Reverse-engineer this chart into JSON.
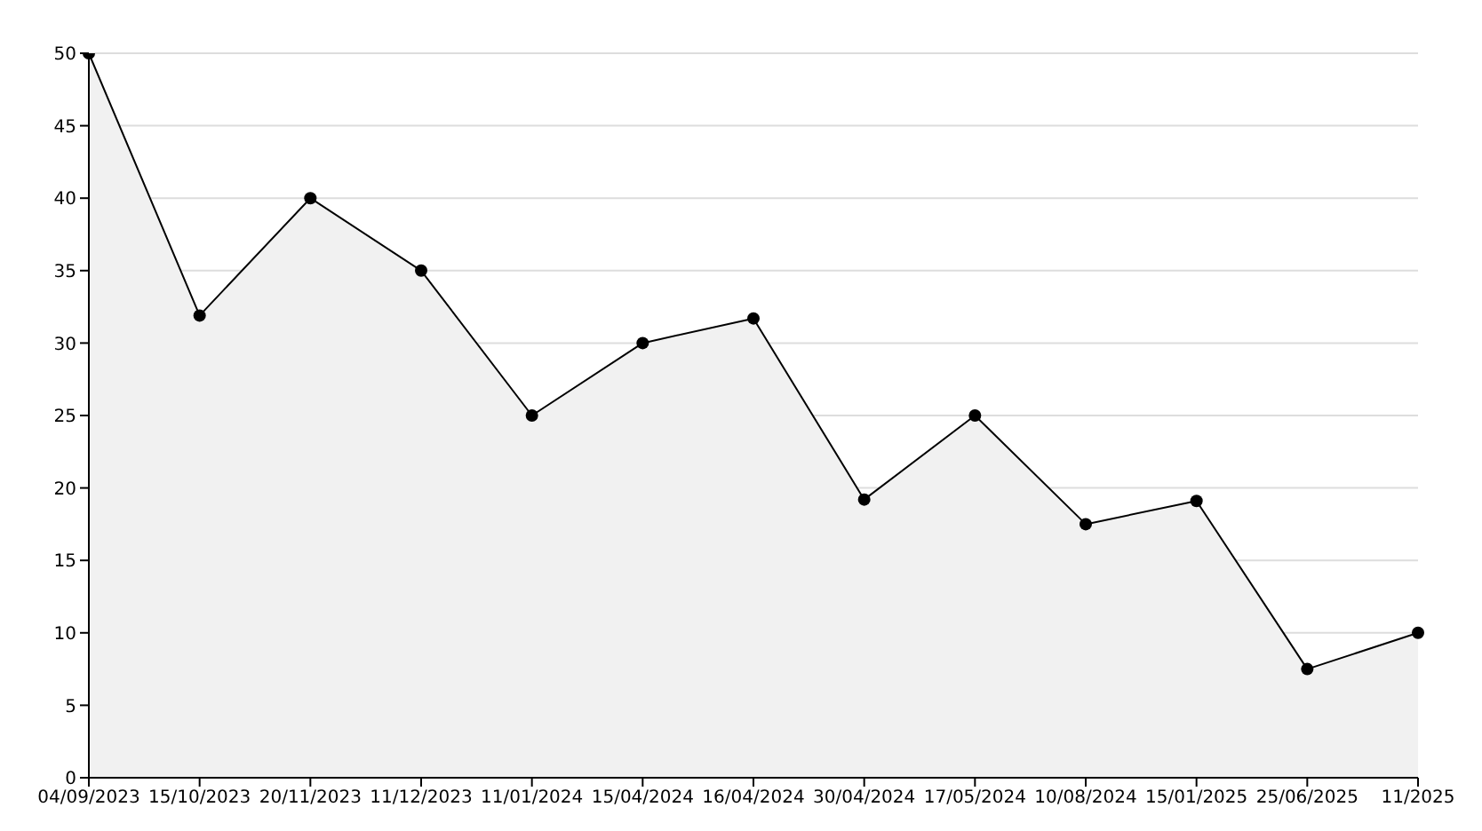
{
  "chart_data": {
    "type": "area",
    "categories": [
      "04/09/2023",
      "15/10/2023",
      "20/11/2023",
      "11/12/2023",
      "11/01/2024",
      "15/04/2024",
      "16/04/2024",
      "30/04/2024",
      "17/05/2024",
      "10/08/2024",
      "15/01/2025",
      "25/06/2025",
      "11/2025"
    ],
    "series": [
      {
        "color": "#000000",
        "values": [
          50,
          31.9,
          40,
          35,
          25,
          30,
          31.7,
          19.2,
          25,
          17.5,
          19.1,
          7.5,
          10
        ]
      }
    ],
    "ylim": [
      0,
      50
    ],
    "yticks": [
      0,
      5,
      10,
      15,
      20,
      25,
      30,
      35,
      40,
      45,
      50
    ],
    "grid": "y",
    "marker": "circle",
    "line_style": "solid"
  }
}
